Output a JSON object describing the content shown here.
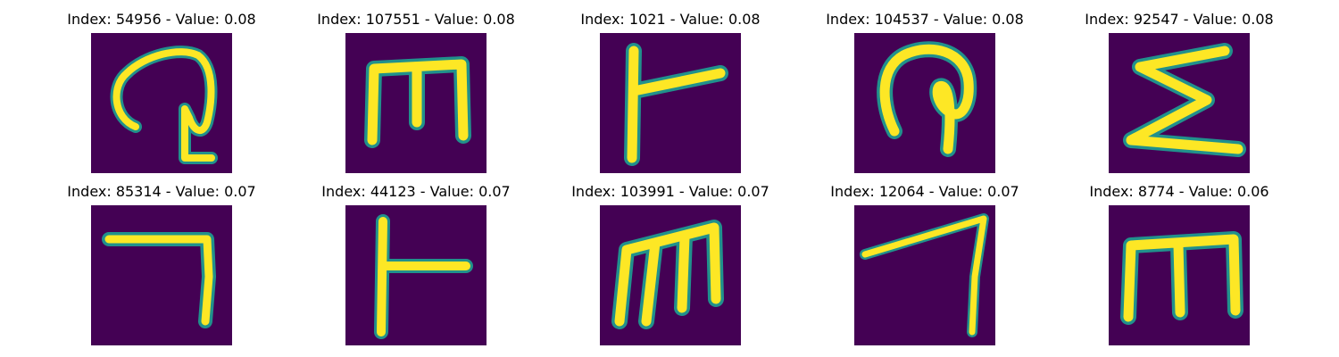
{
  "panels": [
    {
      "title": "Index: 54956 - Value: 0.08",
      "glyph": "swirl-glyph"
    },
    {
      "title": "Index: 107551 - Value: 0.08",
      "glyph": "m-shape-glyph"
    },
    {
      "title": "Index: 1021 - Value: 0.08",
      "glyph": "t-sideways-glyph"
    },
    {
      "title": "Index: 104537 - Value: 0.08",
      "glyph": "hook-glyph"
    },
    {
      "title": "Index: 92547 - Value: 0.08",
      "glyph": "sigma-glyph"
    },
    {
      "title": "Index: 85314 - Value: 0.07",
      "glyph": "corner-glyph"
    },
    {
      "title": "Index: 44123 - Value: 0.07",
      "glyph": "t-sideways-glyph"
    },
    {
      "title": "Index: 103991 - Value: 0.07",
      "glyph": "m-slanted-glyph"
    },
    {
      "title": "Index: 12064 - Value: 0.07",
      "glyph": "seven-glyph"
    },
    {
      "title": "Index: 8774 - Value: 0.06",
      "glyph": "m-shape-glyph"
    }
  ],
  "colors": {
    "background": "#440154",
    "stroke": "#fde725",
    "edge": "#21918c"
  }
}
